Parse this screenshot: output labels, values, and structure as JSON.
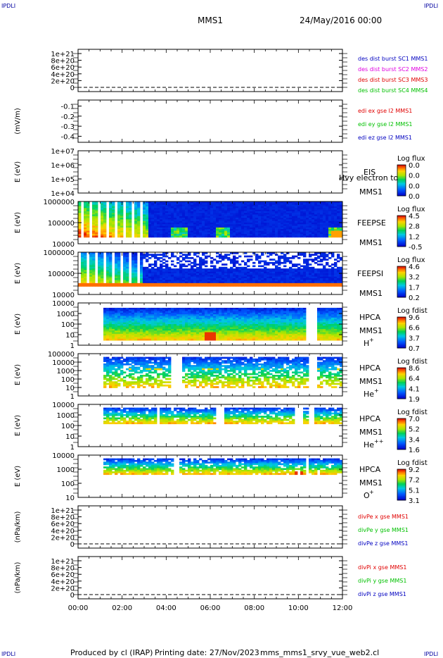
{
  "header": {
    "corner_left_top": "IPDLI",
    "corner_right_top": "IPDLI",
    "spacecraft": "MMS1",
    "date_time": "24/May/2016 00:00",
    "corner_left_bottom": "IPDLI",
    "corner_right_bottom": "IPDLI"
  },
  "footer": {
    "produced_by": "Produced by cl (IRAP)",
    "printing_date": "Printing date: 27/Nov/2023",
    "filename": "mms_mms1_srvy_vue_web2.cl"
  },
  "chart_data": [
    {
      "id": "p1",
      "type": "line",
      "ylabel": "",
      "yticks": [
        "1e+21",
        "8e+20",
        "6e+20",
        "4e+20",
        "2e+20",
        "0"
      ],
      "ylim": [
        0,
        1e+21
      ],
      "dashed_zero": true,
      "legend": [
        {
          "label": "des dist burst SC1 MMS1",
          "color": "#0000c0"
        },
        {
          "label": "des dist burst SC2 MMS2",
          "color": "#e000e0"
        },
        {
          "label": "des dist burst SC3 MMS3",
          "color": "#e00000"
        },
        {
          "label": "des dist burst SC4 MMS4",
          "color": "#00c000"
        }
      ]
    },
    {
      "id": "p2",
      "type": "line",
      "ylabel": "(mV/m)",
      "yticks": [
        "-0.1",
        "-0.2",
        "-0.3",
        "-0.4"
      ],
      "ylim": [
        -0.46,
        -0.04
      ],
      "dashed_zero": false,
      "legend": [
        {
          "label": "edi ex gse l2 MMS1",
          "color": "#e00000"
        },
        {
          "label": "edi ey gse l2 MMS1",
          "color": "#00c000"
        },
        {
          "label": "edi ez gse l2 MMS1",
          "color": "#0000c0"
        }
      ]
    },
    {
      "id": "p3",
      "type": "heatmap",
      "ylabel": "E (eV)",
      "yticks": [
        "1e+07",
        "1e+06",
        "1e+05",
        "1e+04"
      ],
      "instrument": [
        "EIS",
        "MMS1"
      ],
      "overlay_label": "Hvy electron to",
      "colorbar_title": "Log flux",
      "colorbar_ticks": [
        "0.0",
        "0.0",
        "0.0",
        "0.0"
      ],
      "pattern": "empty"
    },
    {
      "id": "p4",
      "type": "heatmap",
      "ylabel": "E (eV)",
      "yticks": [
        "1000000",
        "100000",
        "10000"
      ],
      "instrument": [
        "FEEPSE",
        "MMS1"
      ],
      "colorbar_title": "Log flux",
      "colorbar_ticks": [
        "4.5",
        "2.8",
        "1.2",
        "-0.5"
      ],
      "pattern": "feepse"
    },
    {
      "id": "p5",
      "type": "heatmap",
      "ylabel": "E (eV)",
      "yticks": [
        "1000000",
        "100000",
        "10000"
      ],
      "instrument": [
        "FEEPSI",
        "MMS1"
      ],
      "colorbar_title": "Log flux",
      "colorbar_ticks": [
        "4.6",
        "3.2",
        "1.7",
        "0.2"
      ],
      "pattern": "feepsi"
    },
    {
      "id": "p6",
      "type": "heatmap",
      "ylabel": "E (eV)",
      "yticks": [
        "10000",
        "1000",
        "100",
        "10",
        "1"
      ],
      "instrument": [
        "HPCA",
        "MMS1"
      ],
      "species": "H",
      "charge": "+",
      "colorbar_title": "Log fdist",
      "colorbar_ticks": [
        "9.6",
        "6.6",
        "3.7",
        "0.7"
      ],
      "pattern": "hpca_h"
    },
    {
      "id": "p7",
      "type": "heatmap",
      "ylabel": "E (eV)",
      "yticks": [
        "100000",
        "10000",
        "1000",
        "100",
        "10",
        "1"
      ],
      "instrument": [
        "HPCA",
        "MMS1"
      ],
      "species": "He",
      "charge": "+",
      "colorbar_title": "Log fdist",
      "colorbar_ticks": [
        "8.6",
        "6.4",
        "4.1",
        "1.9"
      ],
      "pattern": "hpca_he"
    },
    {
      "id": "p8",
      "type": "heatmap",
      "ylabel": "E (eV)",
      "yticks": [
        "10000",
        "1000",
        "100",
        "10",
        "1"
      ],
      "instrument": [
        "HPCA",
        "MMS1"
      ],
      "species": "He",
      "charge": "++",
      "colorbar_title": "Log fdist",
      "colorbar_ticks": [
        "7.0",
        "5.2",
        "3.4",
        "1.6"
      ],
      "pattern": "hpca_hepp"
    },
    {
      "id": "p9",
      "type": "heatmap",
      "ylabel": "E (eV)",
      "yticks": [
        "10000",
        "1000",
        "100",
        "10"
      ],
      "instrument": [
        "HPCA",
        "MMS1"
      ],
      "species": "O",
      "charge": "+",
      "colorbar_title": "Log fdist",
      "colorbar_ticks": [
        "9.2",
        "7.2",
        "5.1",
        "3.1"
      ],
      "pattern": "hpca_o"
    },
    {
      "id": "p10",
      "type": "line",
      "ylabel": "(nPa/km)",
      "yticks": [
        "1e+21",
        "8e+20",
        "6e+20",
        "4e+20",
        "2e+20",
        "0"
      ],
      "ylim": [
        0,
        1e+21
      ],
      "dashed_zero": true,
      "legend": [
        {
          "label": "divPe x gse MMS1",
          "color": "#e00000"
        },
        {
          "label": "divPe y gse MMS1",
          "color": "#00c000"
        },
        {
          "label": "divPe z gse MMS1",
          "color": "#0000c0"
        }
      ]
    },
    {
      "id": "p11",
      "type": "line",
      "ylabel": "(nPa/km)",
      "yticks": [
        "1e+21",
        "8e+20",
        "6e+20",
        "4e+20",
        "2e+20",
        "0"
      ],
      "ylim": [
        0,
        1e+21
      ],
      "dashed_zero": true,
      "legend": [
        {
          "label": "divPi x gse MMS1",
          "color": "#e00000"
        },
        {
          "label": "divPi y gse MMS1",
          "color": "#00c000"
        },
        {
          "label": "divPi z gse MMS1",
          "color": "#0000c0"
        }
      ]
    }
  ],
  "time_axis": [
    "00:00",
    "02:00",
    "04:00",
    "06:00",
    "08:00",
    "10:00",
    "12:00"
  ]
}
